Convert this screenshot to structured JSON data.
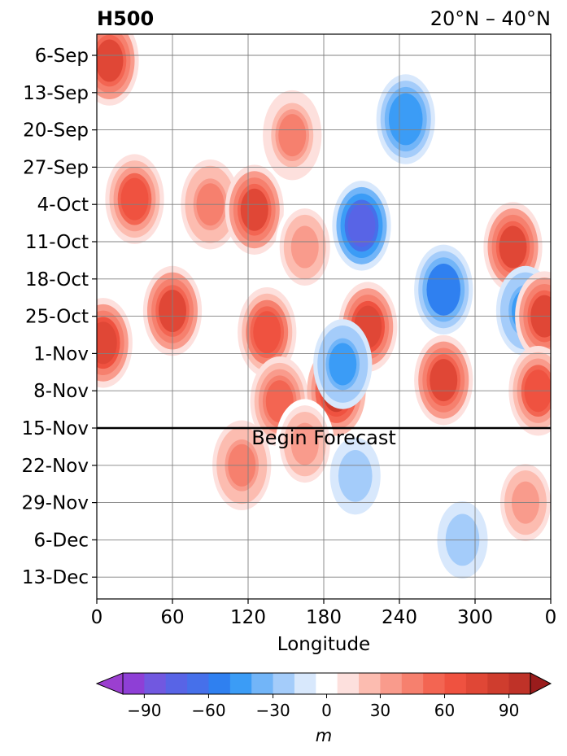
{
  "chart_data": {
    "type": "heatmap",
    "title_left": "H500",
    "title_right": "20°N – 40°N",
    "xlabel": "Longitude",
    "ylabel": "",
    "x_ticks": [
      "0",
      "60",
      "120",
      "180",
      "240",
      "300",
      "0"
    ],
    "x_values": [
      0,
      60,
      120,
      180,
      240,
      300,
      360
    ],
    "xlim": [
      0,
      360
    ],
    "y_ticks": [
      "6-Sep",
      "13-Sep",
      "20-Sep",
      "27-Sep",
      "4-Oct",
      "11-Oct",
      "18-Oct",
      "25-Oct",
      "1-Nov",
      "8-Nov",
      "15-Nov",
      "22-Nov",
      "29-Nov",
      "6-Dec",
      "13-Dec"
    ],
    "y_order": "top-to-bottom",
    "grid": true,
    "annotation": {
      "text": "Begin Forecast",
      "date": "15-Nov"
    },
    "colorbar": {
      "label": "m",
      "ticks": [
        "−90",
        "−60",
        "−30",
        "0",
        "30",
        "60",
        "90"
      ],
      "tick_values": [
        -90,
        -60,
        -30,
        0,
        30,
        60,
        90
      ],
      "levels": [
        -100,
        -90,
        -80,
        -70,
        -60,
        -50,
        -40,
        -30,
        -20,
        -10,
        10,
        20,
        30,
        40,
        50,
        60,
        70,
        80,
        90,
        100
      ],
      "colors": [
        "#8e3fd6",
        "#7158e0",
        "#5864e6",
        "#4670ea",
        "#2f80f0",
        "#3b9cf6",
        "#72b5f8",
        "#a4ccfa",
        "#d8e8fc",
        "#ffffff",
        "#fde0dd",
        "#fcbcb0",
        "#f99b8c",
        "#f6806e",
        "#f36552",
        "#ef5240",
        "#e04736",
        "#cf3d2e",
        "#bf3228"
      ],
      "under_color": "#9b3fd0",
      "over_color": "#9a1c1c",
      "extend": "both"
    },
    "anomaly_features": [
      {
        "lon": 5,
        "date": "30-Oct",
        "value": 75
      },
      {
        "lon": 10,
        "date": "7-Sep",
        "value": 70
      },
      {
        "lon": 30,
        "date": "3-Oct",
        "value": 60
      },
      {
        "lon": 60,
        "date": "24-Oct",
        "value": 70
      },
      {
        "lon": 90,
        "date": "4-Oct",
        "value": 45
      },
      {
        "lon": 125,
        "date": "5-Oct",
        "value": 70
      },
      {
        "lon": 135,
        "date": "28-Oct",
        "value": 65
      },
      {
        "lon": 145,
        "date": "10-Nov",
        "value": 50
      },
      {
        "lon": 155,
        "date": "21-Sep",
        "value": 40
      },
      {
        "lon": 165,
        "date": "12-Oct",
        "value": 35
      },
      {
        "lon": 190,
        "date": "8-Nov",
        "value": 80
      },
      {
        "lon": 215,
        "date": "27-Oct",
        "value": 75
      },
      {
        "lon": 210,
        "date": "8-Oct",
        "value": -75
      },
      {
        "lon": 195,
        "date": "3-Nov",
        "value": -45
      },
      {
        "lon": 245,
        "date": "18-Sep",
        "value": -50
      },
      {
        "lon": 275,
        "date": "20-Oct",
        "value": -60
      },
      {
        "lon": 275,
        "date": "6-Nov",
        "value": 70
      },
      {
        "lon": 330,
        "date": "12-Oct",
        "value": 70
      },
      {
        "lon": 340,
        "date": "24-Oct",
        "value": -45
      },
      {
        "lon": 355,
        "date": "25-Oct",
        "value": 70
      },
      {
        "lon": 350,
        "date": "8-Nov",
        "value": 60
      },
      {
        "lon": 115,
        "date": "22-Nov",
        "value": 45
      },
      {
        "lon": 165,
        "date": "18-Nov",
        "value": 35
      },
      {
        "lon": 205,
        "date": "24-Nov",
        "value": -30
      },
      {
        "lon": 290,
        "date": "6-Dec",
        "value": -30
      },
      {
        "lon": 340,
        "date": "29-Nov",
        "value": 35
      }
    ]
  }
}
